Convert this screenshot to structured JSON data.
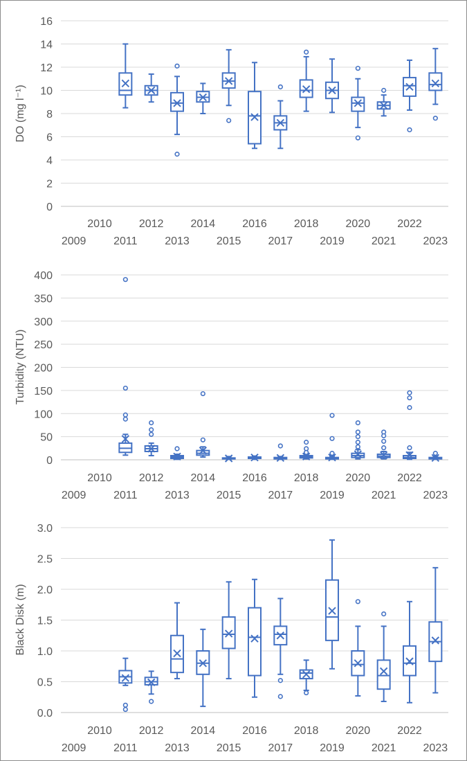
{
  "chart_data": [
    {
      "type": "box",
      "ylabel": "DO (mg l⁻¹)",
      "ylim": [
        0,
        16
      ],
      "yticks": [
        "0",
        "2",
        "4",
        "6",
        "8",
        "10",
        "12",
        "14",
        "16"
      ],
      "categories": [
        "2009",
        "2010",
        "2011",
        "2012",
        "2013",
        "2014",
        "2015",
        "2016",
        "2017",
        "2018",
        "2019",
        "2020",
        "2021",
        "2022",
        "2023"
      ],
      "grid": true,
      "boxes": [
        {
          "year": "2011",
          "min": 8.5,
          "q1": 9.6,
          "median": 10.0,
          "q3": 11.5,
          "max": 14.0,
          "mean": 10.6,
          "outliers": []
        },
        {
          "year": "2012",
          "min": 9.0,
          "q1": 9.6,
          "median": 10.0,
          "q3": 10.4,
          "max": 11.4,
          "mean": 10.0,
          "outliers": []
        },
        {
          "year": "2013",
          "min": 6.2,
          "q1": 8.2,
          "median": 8.9,
          "q3": 9.8,
          "max": 11.2,
          "mean": 8.9,
          "outliers": [
            12.1,
            4.5
          ]
        },
        {
          "year": "2014",
          "min": 8.0,
          "q1": 9.0,
          "median": 9.4,
          "q3": 9.9,
          "max": 10.6,
          "mean": 9.4,
          "outliers": []
        },
        {
          "year": "2015",
          "min": 8.7,
          "q1": 10.2,
          "median": 10.8,
          "q3": 11.5,
          "max": 13.5,
          "mean": 10.8,
          "outliers": [
            7.4
          ]
        },
        {
          "year": "2016",
          "min": 5.0,
          "q1": 5.4,
          "median": 7.8,
          "q3": 9.9,
          "max": 12.4,
          "mean": 7.7,
          "outliers": []
        },
        {
          "year": "2017",
          "min": 5.0,
          "q1": 6.6,
          "median": 7.2,
          "q3": 7.8,
          "max": 9.1,
          "mean": 7.2,
          "outliers": [
            10.3
          ]
        },
        {
          "year": "2018",
          "min": 8.2,
          "q1": 9.4,
          "median": 10.0,
          "q3": 10.9,
          "max": 12.9,
          "mean": 10.1,
          "outliers": [
            13.3
          ]
        },
        {
          "year": "2019",
          "min": 8.1,
          "q1": 9.3,
          "median": 10.0,
          "q3": 10.7,
          "max": 12.7,
          "mean": 10.0,
          "outliers": []
        },
        {
          "year": "2020",
          "min": 6.8,
          "q1": 8.2,
          "median": 8.9,
          "q3": 9.4,
          "max": 11.0,
          "mean": 8.9,
          "outliers": [
            11.9,
            5.9
          ]
        },
        {
          "year": "2021",
          "min": 7.8,
          "q1": 8.4,
          "median": 8.7,
          "q3": 9.0,
          "max": 9.6,
          "mean": 8.7,
          "outliers": [
            10.0
          ]
        },
        {
          "year": "2022",
          "min": 8.3,
          "q1": 9.5,
          "median": 10.4,
          "q3": 11.1,
          "max": 12.6,
          "mean": 10.3,
          "outliers": [
            6.6
          ]
        },
        {
          "year": "2023",
          "min": 8.8,
          "q1": 10.0,
          "median": 10.5,
          "q3": 11.5,
          "max": 13.6,
          "mean": 10.6,
          "outliers": [
            7.6
          ]
        }
      ]
    },
    {
      "type": "box",
      "ylabel": "Turbidity (NTU)",
      "ylim": [
        0,
        400
      ],
      "yticks": [
        "0",
        "50",
        "100",
        "150",
        "200",
        "250",
        "300",
        "350",
        "400"
      ],
      "categories": [
        "2009",
        "2010",
        "2011",
        "2012",
        "2013",
        "2014",
        "2015",
        "2016",
        "2017",
        "2018",
        "2019",
        "2020",
        "2021",
        "2022",
        "2023"
      ],
      "grid": true,
      "boxes": [
        {
          "year": "2011",
          "min": 10,
          "q1": 16,
          "median": 25,
          "q3": 36,
          "max": 55,
          "mean": 45,
          "outliers": [
            390,
            155,
            97,
            88
          ]
        },
        {
          "year": "2012",
          "min": 9,
          "q1": 18,
          "median": 24,
          "q3": 30,
          "max": 36,
          "mean": 24,
          "outliers": [
            80,
            65,
            55
          ]
        },
        {
          "year": "2013",
          "min": 1,
          "q1": 3,
          "median": 6,
          "q3": 9,
          "max": 12,
          "mean": 7,
          "outliers": [
            24
          ]
        },
        {
          "year": "2014",
          "min": 6,
          "q1": 10,
          "median": 14,
          "q3": 20,
          "max": 28,
          "mean": 20,
          "outliers": [
            143,
            43
          ]
        },
        {
          "year": "2015",
          "min": 1,
          "q1": 2,
          "median": 3,
          "q3": 4,
          "max": 7,
          "mean": 3,
          "outliers": []
        },
        {
          "year": "2016",
          "min": 1,
          "q1": 3,
          "median": 4,
          "q3": 6,
          "max": 8,
          "mean": 5,
          "outliers": []
        },
        {
          "year": "2017",
          "min": 1,
          "q1": 2,
          "median": 3,
          "q3": 5,
          "max": 7,
          "mean": 4,
          "outliers": [
            30
          ]
        },
        {
          "year": "2018",
          "min": 2,
          "q1": 4,
          "median": 6,
          "q3": 9,
          "max": 14,
          "mean": 7,
          "outliers": [
            38,
            24,
            16
          ]
        },
        {
          "year": "2019",
          "min": 1,
          "q1": 2,
          "median": 3,
          "q3": 5,
          "max": 8,
          "mean": 5,
          "outliers": [
            96,
            46,
            14
          ]
        },
        {
          "year": "2020",
          "min": 2,
          "q1": 5,
          "median": 9,
          "q3": 14,
          "max": 22,
          "mean": 12,
          "outliers": [
            80,
            60,
            50,
            38,
            28
          ]
        },
        {
          "year": "2021",
          "min": 2,
          "q1": 5,
          "median": 8,
          "q3": 12,
          "max": 18,
          "mean": 10,
          "outliers": [
            60,
            52,
            40,
            26
          ]
        },
        {
          "year": "2022",
          "min": 1,
          "q1": 3,
          "median": 5,
          "q3": 9,
          "max": 16,
          "mean": 10,
          "outliers": [
            145,
            134,
            113,
            26
          ]
        },
        {
          "year": "2023",
          "min": 1,
          "q1": 2,
          "median": 3,
          "q3": 5,
          "max": 8,
          "mean": 4,
          "outliers": [
            14
          ]
        }
      ]
    },
    {
      "type": "box",
      "ylabel": "Black Disk (m)",
      "ylim": [
        0,
        3
      ],
      "yticks": [
        "0.0",
        "0.5",
        "1.0",
        "1.5",
        "2.0",
        "2.5",
        "3.0"
      ],
      "categories": [
        "2009",
        "2010",
        "2011",
        "2012",
        "2013",
        "2014",
        "2015",
        "2016",
        "2017",
        "2018",
        "2019",
        "2020",
        "2021",
        "2022",
        "2023"
      ],
      "grid": true,
      "boxes": [
        {
          "year": "2011",
          "min": 0.44,
          "q1": 0.48,
          "median": 0.58,
          "q3": 0.68,
          "max": 0.88,
          "mean": 0.56,
          "outliers": [
            0.12,
            0.05
          ]
        },
        {
          "year": "2012",
          "min": 0.3,
          "q1": 0.45,
          "median": 0.5,
          "q3": 0.57,
          "max": 0.67,
          "mean": 0.49,
          "outliers": [
            0.18
          ]
        },
        {
          "year": "2013",
          "min": 0.55,
          "q1": 0.65,
          "median": 0.87,
          "q3": 1.25,
          "max": 1.78,
          "mean": 0.96,
          "outliers": []
        },
        {
          "year": "2014",
          "min": 0.1,
          "q1": 0.62,
          "median": 0.8,
          "q3": 1.0,
          "max": 1.35,
          "mean": 0.8,
          "outliers": []
        },
        {
          "year": "2015",
          "min": 0.55,
          "q1": 1.04,
          "median": 1.27,
          "q3": 1.55,
          "max": 2.12,
          "mean": 1.28,
          "outliers": []
        },
        {
          "year": "2016",
          "min": 0.25,
          "q1": 0.6,
          "median": 1.22,
          "q3": 1.7,
          "max": 2.16,
          "mean": 1.2,
          "outliers": []
        },
        {
          "year": "2017",
          "min": 0.62,
          "q1": 1.1,
          "median": 1.27,
          "q3": 1.4,
          "max": 1.85,
          "mean": 1.25,
          "outliers": [
            0.52,
            0.26
          ]
        },
        {
          "year": "2018",
          "min": 0.36,
          "q1": 0.55,
          "median": 0.64,
          "q3": 0.69,
          "max": 0.85,
          "mean": 0.62,
          "outliers": [
            0.32
          ]
        },
        {
          "year": "2019",
          "min": 0.71,
          "q1": 1.17,
          "median": 1.55,
          "q3": 2.15,
          "max": 2.8,
          "mean": 1.65,
          "outliers": []
        },
        {
          "year": "2020",
          "min": 0.27,
          "q1": 0.6,
          "median": 0.78,
          "q3": 1.0,
          "max": 1.4,
          "mean": 0.8,
          "outliers": [
            1.8
          ]
        },
        {
          "year": "2021",
          "min": 0.18,
          "q1": 0.38,
          "median": 0.6,
          "q3": 0.85,
          "max": 1.4,
          "mean": 0.67,
          "outliers": [
            1.6
          ]
        },
        {
          "year": "2022",
          "min": 0.16,
          "q1": 0.6,
          "median": 0.8,
          "q3": 1.08,
          "max": 1.8,
          "mean": 0.83,
          "outliers": []
        },
        {
          "year": "2023",
          "min": 0.32,
          "q1": 0.83,
          "median": 1.15,
          "q3": 1.47,
          "max": 2.35,
          "mean": 1.17,
          "outliers": []
        }
      ]
    }
  ],
  "colors": {
    "series": "#4472c4",
    "grid": "#d9d9d9",
    "text": "#595959"
  }
}
